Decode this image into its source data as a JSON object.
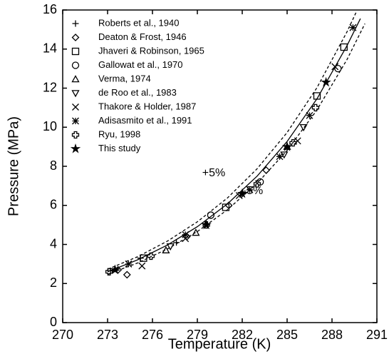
{
  "chart_data": {
    "type": "scatter",
    "xlabel": "Temperature (K)",
    "ylabel": "Pressure (MPa)",
    "xlim": [
      270,
      291
    ],
    "xticks": [
      270,
      273,
      276,
      279,
      282,
      285,
      288,
      291
    ],
    "ylim": [
      0,
      16
    ],
    "yticks": [
      0,
      2,
      4,
      6,
      8,
      10,
      12,
      14,
      16
    ],
    "legend": "upper-left",
    "series": [
      {
        "name": "Roberts et al., 1940",
        "marker": "plus",
        "color": "#000000",
        "x": [
          273.2,
          275.2,
          277.6
        ],
        "values": [
          2.65,
          3.3,
          4.1
        ]
      },
      {
        "name": "Deaton & Frost, 1946",
        "marker": "diamond",
        "color": "#000000",
        "x": [
          274.3,
          273.7,
          278.3,
          281.1,
          283.6
        ],
        "values": [
          2.45,
          2.7,
          4.4,
          6.0,
          7.8
        ]
      },
      {
        "name": "Jhaveri & Robinson, 1965",
        "marker": "square",
        "color": "#000000",
        "x": [
          275.4,
          280.9,
          287.0,
          288.8
        ],
        "values": [
          3.3,
          5.9,
          11.6,
          14.1
        ]
      },
      {
        "name": "Gallowat et al., 1970",
        "marker": "circle",
        "color": "#000000",
        "x": [
          279.9,
          283.2,
          288.4
        ],
        "values": [
          5.5,
          7.2,
          13.0
        ]
      },
      {
        "name": "Verma, 1974",
        "marker": "triangle",
        "color": "#000000",
        "x": [
          276.9,
          278.9,
          285.0
        ],
        "values": [
          3.7,
          4.6,
          9.0
        ]
      },
      {
        "name": "de Roo et al., 1983",
        "marker": "triangle-down",
        "color": "#000000",
        "x": [
          277.2,
          284.8,
          286.1
        ],
        "values": [
          3.9,
          8.6,
          10.0
        ]
      },
      {
        "name": "Thakore & Holder, 1987",
        "marker": "x",
        "color": "#000000",
        "x": [
          275.3,
          278.2,
          281.8,
          285.7,
          288.2
        ],
        "values": [
          2.9,
          4.3,
          6.5,
          9.3,
          13.1
        ]
      },
      {
        "name": "Adisasmito et al., 1991",
        "marker": "asterisk",
        "color": "#000000",
        "x": [
          274.4,
          278.2,
          282.5,
          284.5,
          286.5,
          289.4
        ],
        "values": [
          3.0,
          4.5,
          6.8,
          8.5,
          10.6,
          15.1
        ]
      },
      {
        "name": "Ryu, 1998",
        "marker": "cross",
        "color": "#000000",
        "x": [
          273.1,
          275.9,
          279.6,
          283.0,
          285.4,
          286.9
        ],
        "values": [
          2.6,
          3.4,
          5.0,
          7.1,
          9.2,
          11.0
        ]
      },
      {
        "name": "This study",
        "marker": "star",
        "color": "#000000",
        "x": [
          273.5,
          279.6,
          282.0,
          285.0,
          287.6
        ],
        "values": [
          2.7,
          5.0,
          6.6,
          9.0,
          12.3
        ]
      }
    ],
    "curves": [
      {
        "style": "solid",
        "color": "#000000",
        "x": [
          273,
          275,
          277,
          279,
          281,
          283,
          285,
          287,
          289,
          289.9
        ],
        "values": [
          2.6,
          3.21,
          3.97,
          4.91,
          6.07,
          7.5,
          9.27,
          11.46,
          14.17,
          15.56
        ]
      },
      {
        "style": "dashed",
        "color": "#000000",
        "x": [
          273,
          275,
          277,
          279,
          281,
          283,
          285,
          287,
          289,
          289.6
        ],
        "values": [
          2.73,
          3.37,
          4.17,
          5.16,
          6.37,
          7.88,
          9.73,
          12.03,
          14.88,
          15.86
        ]
      },
      {
        "style": "dashed",
        "color": "#000000",
        "x": [
          273,
          275,
          277,
          279,
          281,
          283,
          285,
          287,
          289,
          290.2
        ],
        "values": [
          2.47,
          3.05,
          3.77,
          4.66,
          5.77,
          7.13,
          8.81,
          10.89,
          13.46,
          15.3
        ]
      }
    ],
    "annotations": [
      "+5%",
      "-5%"
    ]
  }
}
